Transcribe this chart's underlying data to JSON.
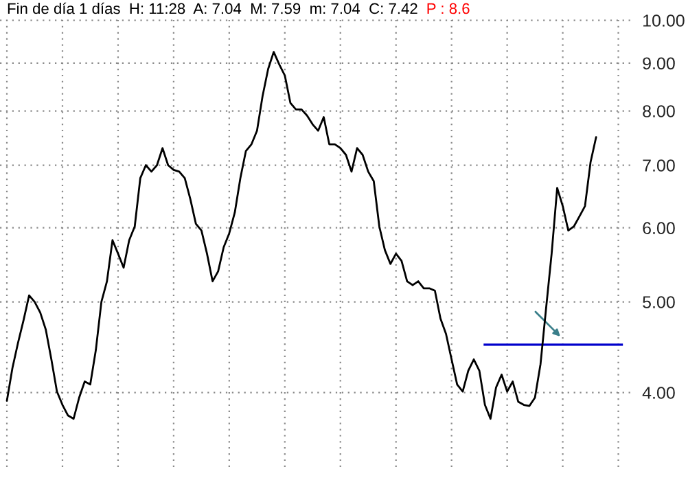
{
  "chart_data": {
    "type": "line",
    "title": "Fin de día 1 días  H: 11:28  A: 7.04  M: 7.59  m: 7.04  C: 7.42",
    "subtitle": "P : 8.6",
    "categories": [
      null,
      null,
      null,
      null,
      null,
      null,
      null,
      null,
      null,
      null,
      null,
      null,
      null,
      null,
      null,
      null,
      null,
      null,
      null,
      null,
      null,
      null,
      null,
      null,
      null,
      null,
      null,
      null,
      null,
      null,
      null,
      null,
      null,
      null,
      null,
      null,
      null,
      null,
      null,
      null,
      null,
      null,
      null,
      null,
      null,
      null,
      null,
      null,
      null,
      null,
      null,
      null,
      null,
      null,
      null,
      null,
      null,
      null,
      null,
      null,
      null,
      null,
      null,
      null,
      null,
      null,
      null,
      null,
      null,
      null,
      null,
      null,
      null,
      null,
      null,
      null,
      null,
      null,
      null,
      null,
      null,
      null,
      null,
      null,
      null,
      null,
      null,
      null,
      null,
      null,
      null,
      null,
      null,
      null,
      null,
      null,
      null,
      null,
      null,
      null,
      null,
      null,
      null,
      null,
      null,
      null,
      null
    ],
    "series": [
      {
        "color": "#000000",
        "values": [
          3.92,
          4.25,
          4.52,
          4.78,
          5.08,
          5.0,
          4.87,
          4.67,
          4.34,
          4.01,
          3.88,
          3.78,
          3.75,
          3.95,
          4.11,
          4.08,
          4.44,
          5.0,
          5.26,
          5.82,
          5.63,
          5.44,
          5.82,
          6.02,
          6.78,
          7.0,
          6.89,
          7.0,
          7.3,
          7.0,
          6.92,
          6.89,
          6.78,
          6.44,
          6.06,
          5.96,
          5.63,
          5.26,
          5.39,
          5.72,
          5.92,
          6.23,
          6.78,
          7.25,
          7.37,
          7.62,
          8.3,
          8.87,
          9.25,
          8.97,
          8.73,
          8.16,
          8.03,
          8.03,
          7.91,
          7.74,
          7.62,
          7.88,
          7.37,
          7.37,
          7.3,
          7.18,
          6.89,
          7.3,
          7.18,
          6.89,
          6.73,
          6.02,
          5.68,
          5.49,
          5.63,
          5.53,
          5.26,
          5.21,
          5.26,
          5.17,
          5.17,
          5.14,
          4.8,
          4.62,
          4.34,
          4.08,
          4.01,
          4.22,
          4.34,
          4.22,
          3.88,
          3.75,
          4.05,
          4.18,
          4.01,
          4.11,
          3.91,
          3.88,
          3.87,
          3.95,
          4.29,
          4.92,
          5.63,
          6.62,
          6.33,
          5.96,
          6.02,
          6.17,
          6.33,
          7.05,
          7.5
        ]
      }
    ],
    "ref_lines": [
      {
        "axis": "y",
        "value": 4.5,
        "color": "#0000cc"
      }
    ],
    "log": "y",
    "ylim": [
      3.33,
      10.06
    ],
    "yticks": [
      {
        "value": 4,
        "label": "4.00"
      },
      {
        "value": 5,
        "label": "5.00"
      },
      {
        "value": 6,
        "label": "6.00"
      },
      {
        "value": 7,
        "label": "7.00"
      },
      {
        "value": 8,
        "label": "8.00"
      },
      {
        "value": 9,
        "label": "9.00"
      },
      {
        "value": 10,
        "label": "10.00"
      }
    ],
    "grid": true,
    "legend": false
  }
}
